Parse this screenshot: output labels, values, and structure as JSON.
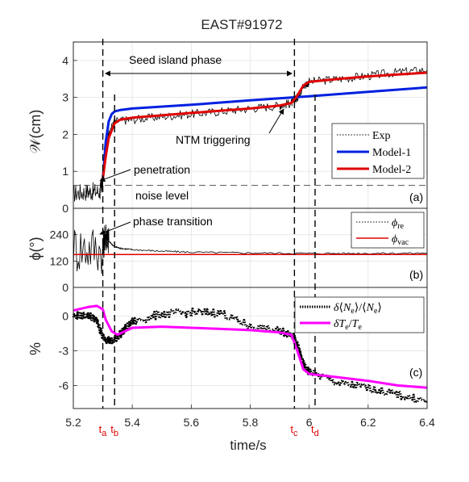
{
  "title": "EAST#91972",
  "xlabel": "time/s",
  "x_ticks": [
    "5.2",
    "5.4",
    "5.6",
    "5.8",
    "6",
    "6.2",
    "6.4"
  ],
  "time_markers": [
    {
      "t": 5.3,
      "label": "t",
      "sub": "a"
    },
    {
      "t": 5.34,
      "label": "t",
      "sub": "b"
    },
    {
      "t": 5.95,
      "label": "t",
      "sub": "c"
    },
    {
      "t": 6.02,
      "label": "t",
      "sub": "d"
    }
  ],
  "colors": {
    "exp": "#000000",
    "model1": "#0020e0",
    "model2": "#e00000",
    "phi_vac": "#e00000",
    "te": "#ff00ff",
    "marker_text": "#e00000"
  },
  "panels": {
    "a": {
      "ylabel": "𝒲(cm)",
      "tag": "(a)",
      "y_ticks": [
        "0",
        "1",
        "2",
        "3",
        "4"
      ],
      "annotations": {
        "seed_phase": "Seed island phase",
        "ntm": "NTM triggering",
        "penetration": "penetration",
        "noise": "noise level"
      },
      "legend": [
        "Exp",
        "Model-1",
        "Model-2"
      ]
    },
    "b": {
      "ylabel": "ϕ(°)",
      "tag": "(b)",
      "y_ticks": [
        "0",
        "120",
        "240"
      ],
      "annotations": {
        "phase": "phase transition"
      },
      "legend": [
        "ϕre",
        "ϕvac"
      ]
    },
    "c": {
      "ylabel": "%",
      "tag": "(c)",
      "y_ticks": [
        "0",
        "-3",
        "-6"
      ],
      "legend": [
        "δ⟨Ne⟩/⟨Ne⟩",
        "δTe/Te"
      ]
    }
  },
  "chart_data": [
    {
      "type": "line",
      "panel": "a",
      "xlabel": "time/s",
      "ylabel": "𝒲(cm)",
      "xlim": [
        5.2,
        6.4
      ],
      "ylim": [
        0,
        4.5
      ],
      "grid": true,
      "legend_position": "right",
      "noise_level": 0.62,
      "series": [
        {
          "name": "Exp",
          "style": "dotted",
          "x": [
            5.2,
            5.25,
            5.29,
            5.3,
            5.31,
            5.32,
            5.34,
            5.4,
            5.5,
            5.6,
            5.7,
            5.8,
            5.9,
            5.94,
            5.96,
            5.98,
            6.0,
            6.1,
            6.2,
            6.3,
            6.4
          ],
          "y": [
            0.4,
            0.45,
            0.45,
            0.7,
            1.5,
            2.0,
            2.35,
            2.4,
            2.48,
            2.55,
            2.62,
            2.7,
            2.78,
            2.85,
            3.0,
            3.3,
            3.42,
            3.5,
            3.58,
            3.68,
            3.75
          ]
        },
        {
          "name": "Model-1",
          "x": [
            5.3,
            5.31,
            5.32,
            5.33,
            5.34,
            5.36,
            5.4,
            5.6,
            5.8,
            6.0,
            6.2,
            6.4
          ],
          "y": [
            0.8,
            1.8,
            2.35,
            2.55,
            2.62,
            2.66,
            2.7,
            2.8,
            2.92,
            3.03,
            3.15,
            3.27
          ]
        },
        {
          "name": "Model-2",
          "x": [
            5.3,
            5.31,
            5.32,
            5.34,
            5.36,
            5.4,
            5.6,
            5.8,
            5.9,
            5.94,
            5.96,
            5.98,
            6.0,
            6.1,
            6.2,
            6.3,
            6.4
          ],
          "y": [
            0.8,
            1.4,
            1.9,
            2.3,
            2.4,
            2.45,
            2.58,
            2.7,
            2.78,
            2.85,
            3.05,
            3.32,
            3.42,
            3.5,
            3.57,
            3.62,
            3.67
          ]
        }
      ]
    },
    {
      "type": "line",
      "panel": "b",
      "ylabel": "ϕ(°)",
      "xlim": [
        5.2,
        6.4
      ],
      "ylim": [
        0,
        360
      ],
      "grid": true,
      "legend_position": "top-right",
      "series": [
        {
          "name": "ϕre",
          "style": "dotted",
          "x": [
            5.2,
            5.3,
            5.31,
            5.32,
            5.34,
            5.36,
            5.4,
            5.5,
            5.6,
            5.8,
            6.0,
            6.2,
            6.4
          ],
          "y": [
            180,
            180,
            245,
            210,
            185,
            178,
            172,
            165,
            160,
            157,
            155,
            155,
            156
          ]
        },
        {
          "name": "ϕvac",
          "x": [
            5.2,
            6.4
          ],
          "y": [
            150,
            150
          ]
        }
      ]
    },
    {
      "type": "line",
      "panel": "c",
      "ylabel": "%",
      "xlim": [
        5.2,
        6.4
      ],
      "ylim": [
        -8,
        2.5
      ],
      "grid": true,
      "legend_position": "top-right",
      "series": [
        {
          "name": "δ⟨Ne⟩/⟨Ne⟩",
          "style": "dotted",
          "x": [
            5.2,
            5.25,
            5.28,
            5.3,
            5.33,
            5.36,
            5.4,
            5.5,
            5.6,
            5.7,
            5.8,
            5.9,
            5.94,
            5.96,
            5.98,
            6.0,
            6.1,
            6.2,
            6.3,
            6.4
          ],
          "y": [
            0,
            0.1,
            -0.4,
            -1.8,
            -2.2,
            -1.5,
            -0.5,
            0.2,
            0.3,
            0.3,
            -0.9,
            -1.3,
            -1.5,
            -2.5,
            -4.2,
            -4.8,
            -5.8,
            -6.2,
            -6.8,
            -7.4
          ]
        },
        {
          "name": "δTe/Te",
          "x": [
            5.2,
            5.25,
            5.28,
            5.3,
            5.31,
            5.33,
            5.35,
            5.4,
            5.5,
            5.6,
            5.7,
            5.8,
            5.9,
            5.94,
            5.96,
            5.98,
            6.0,
            6.1,
            6.2,
            6.3,
            6.4
          ],
          "y": [
            0.5,
            0.8,
            0.9,
            0.6,
            -0.3,
            -1.3,
            -1.6,
            -1.0,
            -0.9,
            -1.0,
            -1.1,
            -1.2,
            -1.4,
            -1.6,
            -3.0,
            -4.6,
            -5.0,
            -5.3,
            -5.6,
            -6.0,
            -6.2
          ]
        }
      ]
    }
  ]
}
